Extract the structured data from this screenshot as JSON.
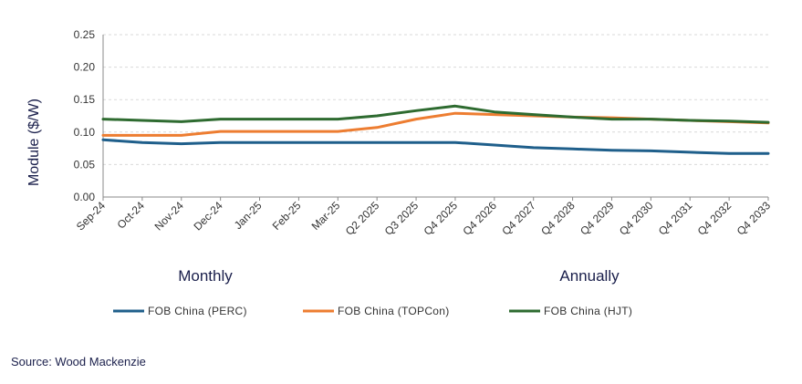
{
  "chart_data": {
    "type": "line",
    "ylabel": "Module ($/W)",
    "ylim": [
      0,
      0.25
    ],
    "yticks": [
      "0.00",
      "0.05",
      "0.10",
      "0.15",
      "0.20",
      "0.25"
    ],
    "grid": true,
    "categories": [
      "Sep-24",
      "Oct-24",
      "Nov-24",
      "Dec-24",
      "Jan-25",
      "Feb-25",
      "Mar-25",
      "Q2 2025",
      "Q3 2025",
      "Q4 2025",
      "Q4 2026",
      "Q4 2027",
      "Q4 2028",
      "Q4 2029",
      "Q4 2030",
      "Q4 2031",
      "Q4 2032",
      "Q4 2033"
    ],
    "section_labels": [
      "Monthly",
      "Annually"
    ],
    "legend_position": "bottom",
    "series": [
      {
        "name": "FOB China (PERC)",
        "color": "#1f5f8b",
        "values": [
          0.088,
          0.084,
          0.082,
          0.084,
          0.084,
          0.084,
          0.084,
          0.084,
          0.084,
          0.084,
          0.08,
          0.076,
          0.074,
          0.072,
          0.071,
          0.069,
          0.067,
          0.067
        ]
      },
      {
        "name": "FOB China (TOPCon)",
        "color": "#ed7d31",
        "values": [
          0.095,
          0.095,
          0.095,
          0.101,
          0.101,
          0.101,
          0.101,
          0.107,
          0.12,
          0.129,
          0.127,
          0.125,
          0.123,
          0.122,
          0.12,
          0.118,
          0.116,
          0.114
        ]
      },
      {
        "name": "FOB China (HJT)",
        "color": "#2e6b30",
        "values": [
          0.12,
          0.118,
          0.116,
          0.12,
          0.12,
          0.12,
          0.12,
          0.125,
          0.133,
          0.14,
          0.131,
          0.127,
          0.123,
          0.12,
          0.12,
          0.118,
          0.117,
          0.115
        ]
      }
    ]
  },
  "source": "Source: Wood Mackenzie"
}
